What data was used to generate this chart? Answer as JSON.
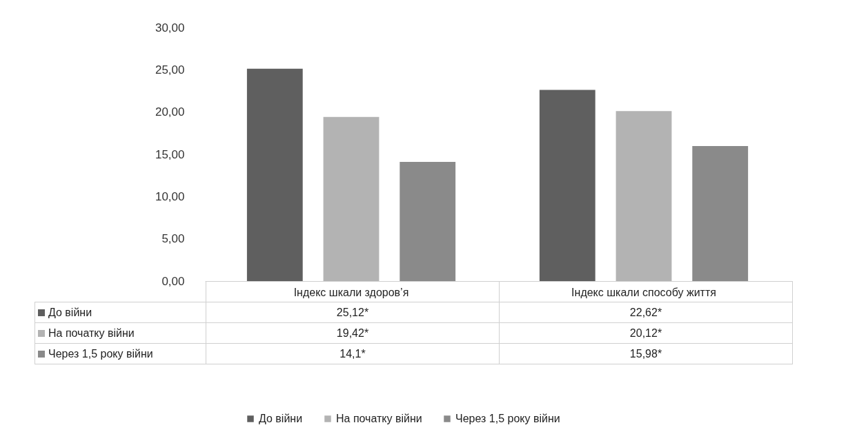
{
  "chart_data": {
    "type": "bar",
    "categories": [
      "Індекс шкали здоров’я",
      "Індекс шкали способу життя"
    ],
    "series": [
      {
        "name": "До війни",
        "color": "#5f5f5f",
        "values": [
          25.12,
          22.62
        ],
        "value_labels": [
          "25,12*",
          "22,62*"
        ]
      },
      {
        "name": "На початку війни",
        "color": "#b3b3b3",
        "values": [
          19.42,
          20.12
        ],
        "value_labels": [
          "19,42*",
          "20,12*"
        ]
      },
      {
        "name": "Через 1,5 року війни",
        "color": "#8a8a8a",
        "values": [
          14.1,
          15.98
        ],
        "value_labels": [
          "14,1*",
          "15,98*"
        ]
      }
    ],
    "ylim": [
      0,
      30
    ],
    "yticks": [
      {
        "value": 0,
        "label": "0,00"
      },
      {
        "value": 5,
        "label": "5,00"
      },
      {
        "value": 10,
        "label": "10,00"
      },
      {
        "value": 15,
        "label": "15,00"
      },
      {
        "value": 20,
        "label": "20,00"
      },
      {
        "value": 25,
        "label": "25,00"
      },
      {
        "value": 30,
        "label": "30,00"
      }
    ],
    "grid": false,
    "legend": "bottom"
  }
}
